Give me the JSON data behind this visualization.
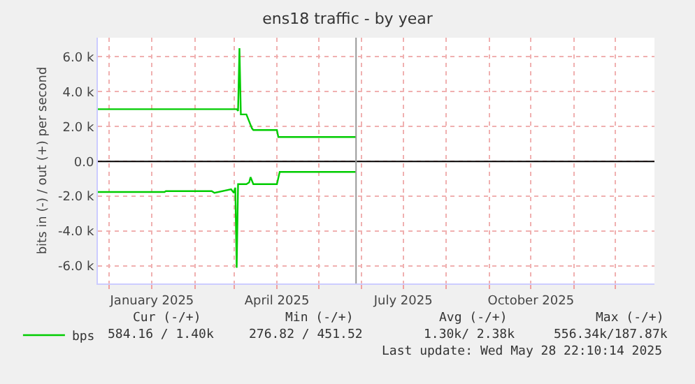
{
  "chart_data": {
    "type": "line",
    "title": "ens18 traffic - by year",
    "ylabel": "bits in (-) / out (+) per second",
    "xlim": [
      "2024-11-23",
      "2025-12-29"
    ],
    "xticks": [
      {
        "value": "2024-12-01",
        "label": null
      },
      {
        "value": "2025-01-01",
        "label": "January 2025"
      },
      {
        "value": "2025-02-01",
        "label": null
      },
      {
        "value": "2025-03-01",
        "label": null
      },
      {
        "value": "2025-04-01",
        "label": "April 2025"
      },
      {
        "value": "2025-05-01",
        "label": null
      },
      {
        "value": "2025-06-01",
        "label": null
      },
      {
        "value": "2025-07-01",
        "label": "July 2025"
      },
      {
        "value": "2025-08-01",
        "label": null
      },
      {
        "value": "2025-09-01",
        "label": null
      },
      {
        "value": "2025-10-01",
        "label": "October 2025"
      },
      {
        "value": "2025-11-01",
        "label": null
      },
      {
        "value": "2025-12-01",
        "label": null
      }
    ],
    "ylim": [
      -7000,
      7100
    ],
    "yticks": [
      {
        "value": -6000,
        "label": "-6.0 k"
      },
      {
        "value": -4000,
        "label": "-4.0 k"
      },
      {
        "value": -2000,
        "label": "-2.0 k"
      },
      {
        "value": 0,
        "label": "0.0"
      },
      {
        "value": 2000,
        "label": "2.0 k"
      },
      {
        "value": 4000,
        "label": "4.0 k"
      },
      {
        "value": 6000,
        "label": "6.0 k"
      }
    ],
    "grid": true,
    "legend": "bottom",
    "marker": "none",
    "line_style": "solid",
    "series": [
      {
        "name": "bps",
        "color": "#00cc00",
        "x": [
          "2024-11-23",
          "2025-01-10",
          "2025-02-13",
          "2025-03-03",
          "2025-03-04",
          "2025-03-05",
          "2025-03-06",
          "2025-03-10",
          "2025-03-14",
          "2025-03-15",
          "2025-04-01",
          "2025-04-02",
          "2025-05-28"
        ],
        "values": [
          3000,
          3000,
          3000,
          3000,
          2900,
          6500,
          2700,
          2700,
          1900,
          1800,
          1800,
          1400,
          1400
        ]
      },
      {
        "color": "#00cc00",
        "x": [
          "2024-11-23",
          "2025-01-10",
          "2025-01-11",
          "2025-02-13",
          "2025-02-15",
          "2025-02-27",
          "2025-03-01",
          "2025-03-02",
          "2025-03-03",
          "2025-03-04",
          "2025-03-10",
          "2025-03-12",
          "2025-03-13",
          "2025-03-15",
          "2025-04-01",
          "2025-04-03",
          "2025-05-28"
        ],
        "values": [
          -1750,
          -1750,
          -1700,
          -1700,
          -1800,
          -1600,
          -1800,
          -1500,
          -6100,
          -1300,
          -1300,
          -1200,
          -900,
          -1300,
          -1300,
          -600,
          -600
        ]
      }
    ],
    "ref_lines": [
      {
        "axis": "y",
        "value": 0,
        "color": "#000000"
      },
      {
        "axis": "x",
        "value": "2025-05-28",
        "color": "#999999"
      }
    ],
    "annotations": [
      "Cur (-/+)",
      "Min (-/+)",
      "Avg (-/+)",
      "Max (-/+)",
      "584.16 / 1.40k",
      "276.82 / 451.52",
      "1.30k/ 2.38k",
      "556.34k/187.87k",
      "Last update: Wed May 28 22:10:14 2025"
    ]
  }
}
